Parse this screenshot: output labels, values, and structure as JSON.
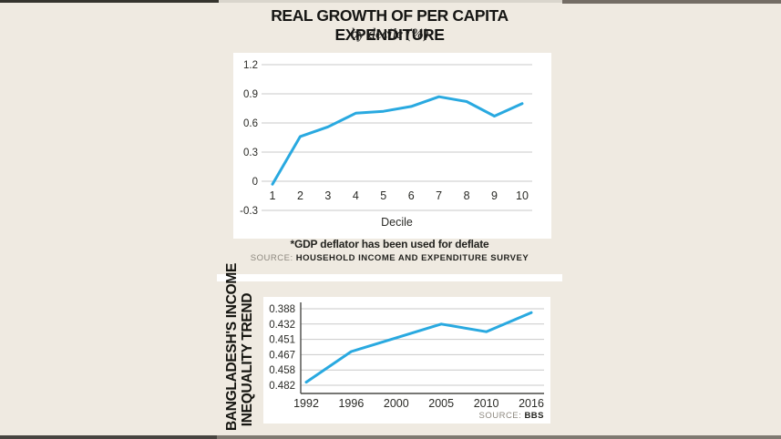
{
  "colors": {
    "line": "#29a9e0",
    "background": "#efeae1",
    "plot_background": "#ffffff",
    "grid": "#c9c9c9",
    "axis": "#4a4a46",
    "text": "#2a2a26"
  },
  "chart_data": [
    {
      "id": "real-growth-per-capita-expenditure",
      "type": "line",
      "title": "REAL GROWTH OF PER CAPITA EXPENDITURE",
      "subtitle": "by decile (%)",
      "xlabel": "Decile",
      "categories": [
        "1",
        "2",
        "3",
        "4",
        "5",
        "6",
        "7",
        "8",
        "9",
        "10"
      ],
      "values": [
        -0.03,
        0.46,
        0.56,
        0.7,
        0.72,
        0.77,
        0.87,
        0.82,
        0.67,
        0.8
      ],
      "y_ticks": [
        "1.2",
        "0.9",
        "0.6",
        "0.3",
        "0",
        "-0.3"
      ],
      "ylim": [
        -0.3,
        1.2
      ],
      "grid": true,
      "legend": false,
      "footnote": "*GDP deflator has been used for deflate",
      "source_label": "SOURCE:",
      "source": "HOUSEHOLD INCOME AND EXPENDITURE SURVEY"
    },
    {
      "id": "bangladesh-income-inequality-trend",
      "type": "line",
      "title": "BANGLADESH'S INCOME INEQUALITY TREND",
      "title_lines": [
        "BANGLADESH'S INCOME",
        "INEQUALITY TREND"
      ],
      "categories": [
        "1992",
        "1996",
        "2000",
        "2005",
        "2010",
        "2016"
      ],
      "values": [
        0.388,
        0.432,
        0.451,
        0.467,
        0.458,
        0.482
      ],
      "y_tick_labels_top_to_bottom": [
        "0.388",
        "0.432",
        "0.451",
        "0.467",
        "0.458",
        "0.482"
      ],
      "plot_rows": [
        4.8,
        2.8,
        1.9,
        1.0,
        1.5,
        0.25
      ],
      "axis_note": "y-axis tick labels are printed in survey-year order; plotted line rises left to right",
      "grid": true,
      "legend": false,
      "source_label": "SOURCE:",
      "source": "BBS"
    }
  ]
}
